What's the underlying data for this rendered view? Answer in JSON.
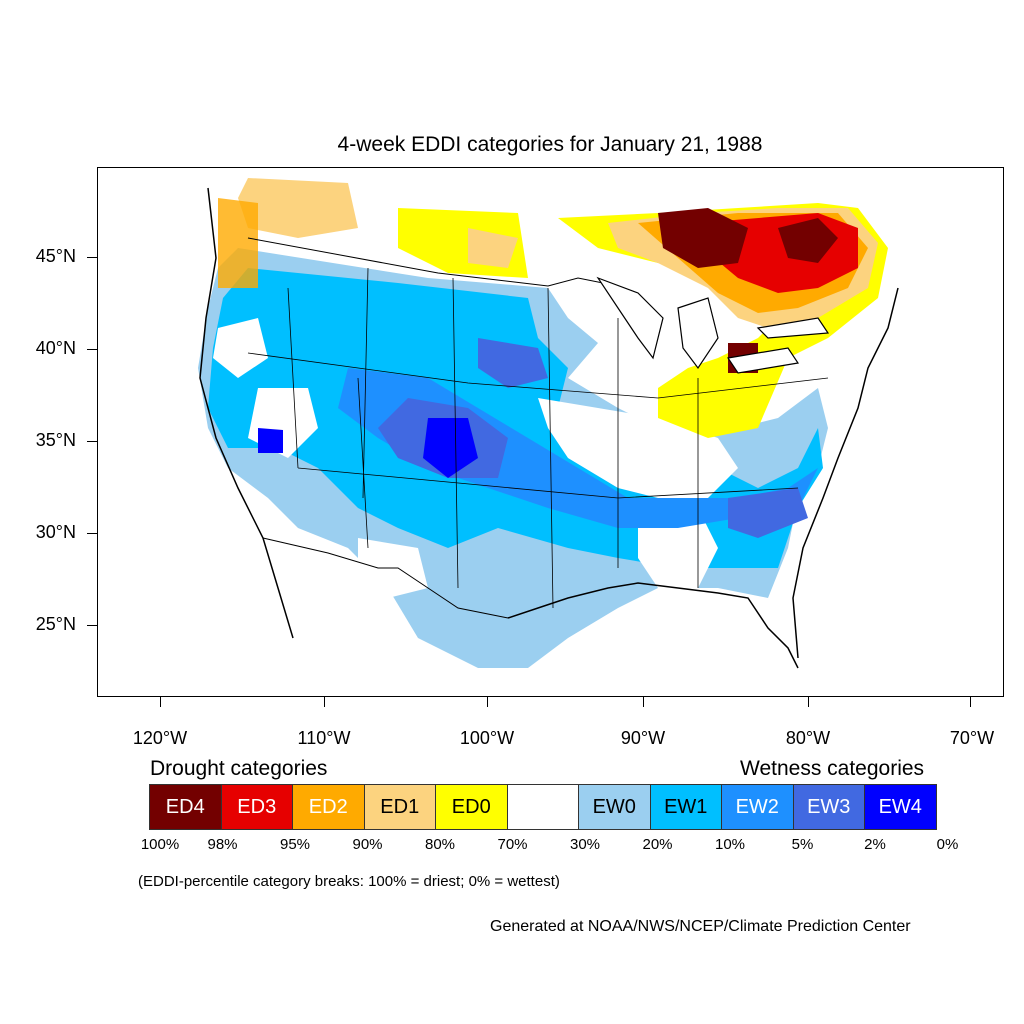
{
  "title": "4-week EDDI categories for January 21, 1988",
  "map": {
    "lat_labels": [
      "45°N",
      "40°N",
      "35°N",
      "30°N",
      "25°N"
    ],
    "lon_labels": [
      "120°W",
      "110°W",
      "100°W",
      "90°W",
      "80°W",
      "70°W"
    ]
  },
  "legend": {
    "drought_heading": "Drought categories",
    "wetness_heading": "Wetness categories",
    "categories": [
      {
        "label": "ED4",
        "color": "#730000",
        "text_color": "#ffffff"
      },
      {
        "label": "ED3",
        "color": "#e60000",
        "text_color": "#ffffff"
      },
      {
        "label": "ED2",
        "color": "#ffaa00",
        "text_color": "#ffffff"
      },
      {
        "label": "ED1",
        "color": "#fcd37f",
        "text_color": "#000000"
      },
      {
        "label": "ED0",
        "color": "#ffff00",
        "text_color": "#000000"
      },
      {
        "label": "",
        "color": "#ffffff",
        "text_color": "#000000"
      },
      {
        "label": "EW0",
        "color": "#9bcff0",
        "text_color": "#000000"
      },
      {
        "label": "EW1",
        "color": "#00bfff",
        "text_color": "#000000"
      },
      {
        "label": "EW2",
        "color": "#1e90ff",
        "text_color": "#ffffff"
      },
      {
        "label": "EW3",
        "color": "#4169e1",
        "text_color": "#ffffff"
      },
      {
        "label": "EW4",
        "color": "#0000ff",
        "text_color": "#ffffff"
      }
    ],
    "breaks": [
      "100%",
      "98%",
      "95%",
      "90%",
      "80%",
      "70%",
      "30%",
      "20%",
      "10%",
      "5%",
      "2%",
      "0%"
    ],
    "note": "(EDDI-percentile category breaks: 100% = driest; 0% = wettest)"
  },
  "credit": "Generated at NOAA/NWS/NCEP/Climate Prediction Center"
}
